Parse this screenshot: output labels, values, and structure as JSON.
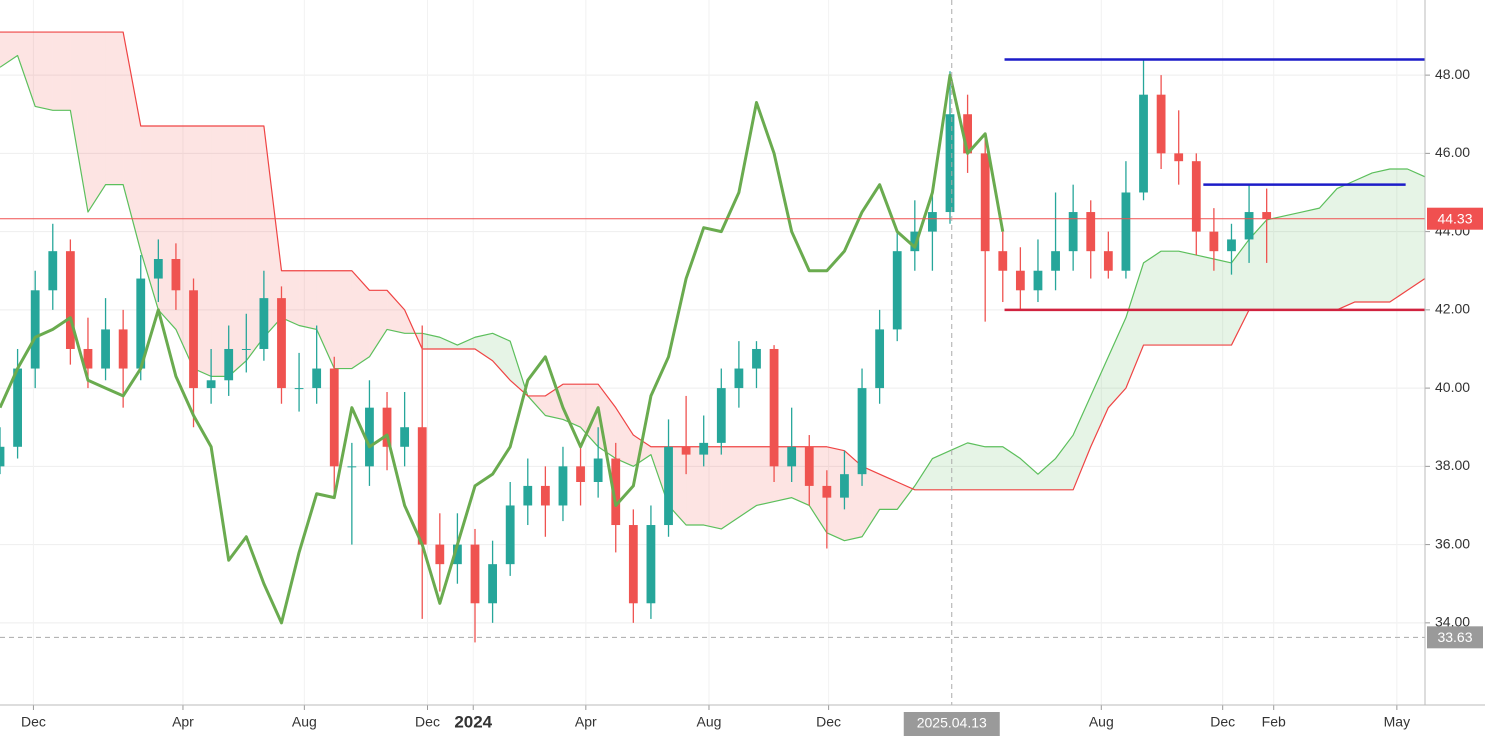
{
  "chart_data": {
    "type": "candlestick",
    "xlim": [
      0,
      81
    ],
    "ylim": [
      31.9,
      49.92
    ],
    "grid": true,
    "yticks": [
      {
        "value": 34,
        "label": "34.00"
      },
      {
        "value": 36,
        "label": "36.00"
      },
      {
        "value": 38,
        "label": "38.00"
      },
      {
        "value": 40,
        "label": "40.00"
      },
      {
        "value": 42,
        "label": "42.00"
      },
      {
        "value": 44,
        "label": "44.00"
      },
      {
        "value": 46,
        "label": "46.00"
      },
      {
        "value": 48,
        "label": "48.00"
      }
    ],
    "xticks": [
      {
        "value": 1.9,
        "label": "Dec"
      },
      {
        "value": 10.4,
        "label": "Apr"
      },
      {
        "value": 17.3,
        "label": "Aug"
      },
      {
        "value": 24.3,
        "label": "Dec"
      },
      {
        "value": 26.9,
        "label": "2024"
      },
      {
        "value": 33.3,
        "label": "Apr"
      },
      {
        "value": 40.3,
        "label": "Aug"
      },
      {
        "value": 47.1,
        "label": "Dec"
      },
      {
        "value": 62.6,
        "label": "Aug"
      },
      {
        "value": 69.5,
        "label": "Dec"
      },
      {
        "value": 72.4,
        "label": "Feb"
      },
      {
        "value": 79.4,
        "label": "May"
      }
    ],
    "up_color": "#26a69a",
    "down_color": "#ef5350",
    "candles": [
      [
        38.0,
        39.0,
        37.8,
        38.5
      ],
      [
        38.5,
        41.0,
        38.2,
        40.5
      ],
      [
        40.5,
        43.0,
        40.0,
        42.5
      ],
      [
        42.5,
        44.2,
        42.0,
        43.5
      ],
      [
        43.5,
        43.8,
        40.6,
        41.0
      ],
      [
        41.0,
        41.8,
        40.0,
        40.5
      ],
      [
        40.5,
        42.3,
        40.2,
        41.5
      ],
      [
        41.5,
        42.0,
        39.5,
        40.5
      ],
      [
        40.5,
        43.4,
        40.2,
        42.8
      ],
      [
        42.8,
        43.8,
        42.2,
        43.3
      ],
      [
        43.3,
        43.7,
        42.0,
        42.5
      ],
      [
        42.5,
        42.8,
        39.0,
        40.0
      ],
      [
        40.0,
        41.0,
        39.6,
        40.2
      ],
      [
        40.2,
        41.6,
        39.8,
        41.0
      ],
      [
        41.0,
        41.9,
        40.4,
        41.0
      ],
      [
        41.0,
        43.0,
        40.7,
        42.3
      ],
      [
        42.3,
        42.6,
        39.6,
        40.0
      ],
      [
        40.0,
        40.9,
        39.4,
        40.0
      ],
      [
        40.0,
        41.6,
        39.6,
        40.5
      ],
      [
        40.5,
        40.8,
        37.2,
        38.0
      ],
      [
        38.0,
        38.6,
        36.0,
        38.0
      ],
      [
        38.0,
        40.2,
        37.5,
        39.5
      ],
      [
        39.5,
        39.9,
        37.9,
        38.5
      ],
      [
        38.5,
        39.9,
        38.0,
        39.0
      ],
      [
        39.0,
        41.6,
        34.1,
        36.0
      ],
      [
        36.0,
        36.8,
        34.8,
        35.5
      ],
      [
        35.5,
        36.8,
        35.0,
        36.0
      ],
      [
        36.0,
        36.4,
        33.5,
        34.5
      ],
      [
        34.5,
        36.1,
        34.0,
        35.5
      ],
      [
        35.5,
        37.6,
        35.2,
        37.0
      ],
      [
        37.0,
        38.2,
        36.5,
        37.5
      ],
      [
        37.5,
        38.0,
        36.2,
        37.0
      ],
      [
        37.0,
        38.5,
        36.6,
        38.0
      ],
      [
        38.0,
        38.5,
        37.0,
        37.6
      ],
      [
        37.6,
        39.0,
        37.2,
        38.2
      ],
      [
        38.2,
        38.6,
        35.8,
        36.5
      ],
      [
        36.5,
        36.9,
        34.0,
        34.5
      ],
      [
        34.5,
        37.0,
        34.1,
        36.5
      ],
      [
        36.5,
        39.2,
        36.2,
        38.5
      ],
      [
        38.5,
        39.8,
        37.8,
        38.3
      ],
      [
        38.3,
        39.3,
        38.0,
        38.6
      ],
      [
        38.6,
        40.5,
        38.3,
        40.0
      ],
      [
        40.0,
        41.2,
        39.5,
        40.5
      ],
      [
        40.5,
        41.2,
        40.0,
        41.0
      ],
      [
        41.0,
        41.1,
        37.6,
        38.0
      ],
      [
        38.0,
        39.5,
        37.6,
        38.5
      ],
      [
        38.5,
        38.8,
        37.0,
        37.5
      ],
      [
        37.5,
        37.9,
        35.9,
        37.2
      ],
      [
        37.2,
        38.4,
        36.9,
        37.8
      ],
      [
        37.8,
        40.5,
        37.5,
        40.0
      ],
      [
        40.0,
        42.0,
        39.6,
        41.5
      ],
      [
        41.5,
        44.0,
        41.2,
        43.5
      ],
      [
        43.5,
        44.8,
        43.0,
        44.0
      ],
      [
        44.0,
        45.0,
        43.0,
        44.5
      ],
      [
        44.5,
        48.1,
        44.2,
        47.0
      ],
      [
        47.0,
        47.5,
        45.5,
        46.0
      ],
      [
        46.0,
        46.4,
        41.7,
        43.5
      ],
      [
        43.5,
        44.0,
        42.2,
        43.0
      ],
      [
        43.0,
        43.6,
        42.0,
        42.5
      ],
      [
        42.5,
        43.8,
        42.2,
        43.0
      ],
      [
        43.0,
        45.0,
        42.5,
        43.5
      ],
      [
        43.5,
        45.2,
        43.0,
        44.5
      ],
      [
        44.5,
        44.8,
        42.8,
        43.5
      ],
      [
        43.5,
        44.0,
        42.8,
        43.0
      ],
      [
        43.0,
        45.8,
        42.8,
        45.0
      ],
      [
        45.0,
        48.4,
        44.8,
        47.5
      ],
      [
        47.5,
        48.0,
        45.6,
        46.0
      ],
      [
        46.0,
        47.1,
        45.2,
        45.8
      ],
      [
        45.8,
        46.0,
        43.4,
        44.0
      ],
      [
        44.0,
        44.6,
        43.0,
        43.5
      ],
      [
        43.5,
        44.2,
        42.9,
        43.8
      ],
      [
        43.8,
        45.2,
        43.2,
        44.5
      ],
      [
        44.5,
        45.1,
        43.2,
        44.33
      ]
    ],
    "span_a": {
      "color": "#5cbf5c",
      "fill": "#4caf50",
      "values": [
        48.2,
        48.5,
        47.2,
        47.1,
        47.1,
        44.5,
        45.2,
        45.2,
        43.5,
        42.0,
        41.5,
        40.5,
        40.3,
        40.3,
        40.7,
        41.3,
        41.8,
        41.6,
        41.5,
        40.5,
        40.5,
        40.8,
        41.5,
        41.4,
        41.4,
        41.3,
        41.1,
        41.3,
        41.4,
        41.2,
        39.8,
        39.3,
        39.2,
        39.0,
        38.5,
        38.2,
        38.0,
        38.3,
        37.0,
        36.5,
        36.5,
        36.4,
        36.7,
        37.0,
        37.1,
        37.2,
        37.0,
        36.3,
        36.1,
        36.2,
        36.9,
        36.9,
        37.5,
        38.2,
        38.4,
        38.6,
        38.5,
        38.5,
        38.2,
        37.8,
        38.2,
        38.8,
        39.8,
        40.8,
        41.8,
        43.2,
        43.5,
        43.5,
        43.4,
        43.3,
        43.2,
        43.8,
        44.3,
        44.4,
        44.5,
        44.6,
        45.1,
        45.3,
        45.5,
        45.6,
        45.6,
        45.4
      ]
    },
    "span_b": {
      "color": "#ef4444",
      "fill": "#f44336",
      "values": [
        49.1,
        49.1,
        49.1,
        49.1,
        49.1,
        49.1,
        49.1,
        49.1,
        46.7,
        46.7,
        46.7,
        46.7,
        46.7,
        46.7,
        46.7,
        46.7,
        43.0,
        43.0,
        43.0,
        43.0,
        43.0,
        42.5,
        42.5,
        42.0,
        41.0,
        41.0,
        41.0,
        41.0,
        40.7,
        40.2,
        39.8,
        39.8,
        40.1,
        40.1,
        40.1,
        39.5,
        38.8,
        38.5,
        38.5,
        38.5,
        38.5,
        38.5,
        38.5,
        38.5,
        38.5,
        38.5,
        38.5,
        38.5,
        38.4,
        38.0,
        37.8,
        37.6,
        37.4,
        37.4,
        37.4,
        37.4,
        37.4,
        37.4,
        37.4,
        37.4,
        37.4,
        37.4,
        38.5,
        39.5,
        40.0,
        41.1,
        41.1,
        41.1,
        41.1,
        41.1,
        41.1,
        42.0,
        42.0,
        42.0,
        42.0,
        42.0,
        42.0,
        42.2,
        42.2,
        42.2,
        42.5,
        42.8
      ]
    },
    "chikou": {
      "color": "#6aab4f",
      "values": [
        39.5,
        40.5,
        41.3,
        41.5,
        41.8,
        40.2,
        40.0,
        39.8,
        40.5,
        42.0,
        40.3,
        39.3,
        38.5,
        35.6,
        36.2,
        35.0,
        34.0,
        35.8,
        37.3,
        37.2,
        39.5,
        38.5,
        38.8,
        37.0,
        36.0,
        34.5,
        36.0,
        37.5,
        37.8,
        38.5,
        40.2,
        40.8,
        39.5,
        38.5,
        39.5,
        37.0,
        37.5,
        39.8,
        40.8,
        42.8,
        44.1,
        44.0,
        45.0,
        47.3,
        46.0,
        44.0,
        43.0,
        43.0,
        43.5,
        44.5,
        45.2,
        44.0,
        43.6,
        45.0,
        48.0,
        46.0,
        46.5,
        44.0
      ]
    },
    "levels": [
      {
        "value": 48.4,
        "x": [
          57.1,
          81
        ],
        "color": "#1c1cc8"
      },
      {
        "value": 45.2,
        "x": [
          68.4,
          79.9
        ],
        "color": "#1c1cc8"
      },
      {
        "value": 42.0,
        "x": [
          57.1,
          81
        ],
        "color": "#d0233f"
      }
    ],
    "last_price": {
      "value": 44.33,
      "color": "#f05050"
    },
    "crosshair": {
      "x": 54.1,
      "x_label": "2025.04.13",
      "y": 33.63
    }
  }
}
